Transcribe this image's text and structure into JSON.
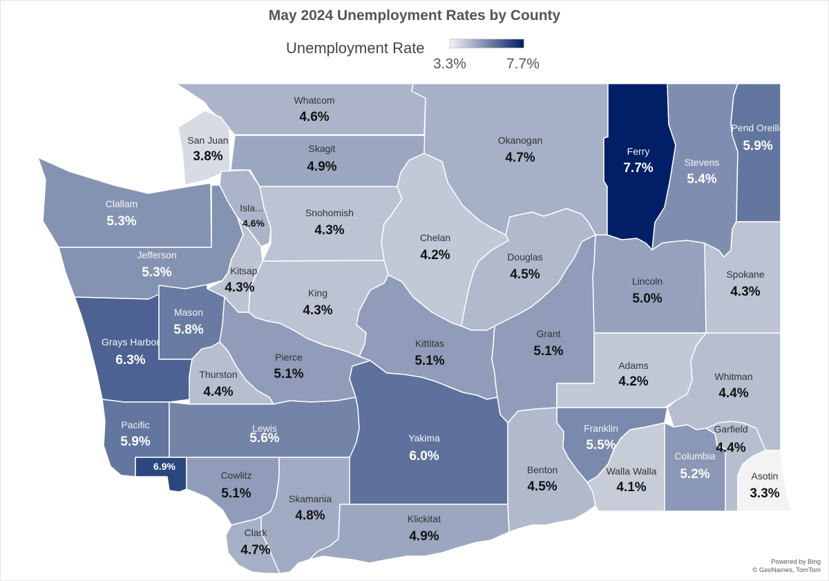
{
  "title": "May 2024 Unemployment Rates by County",
  "legend": {
    "label": "Unemployment Rate",
    "min_label": "3.3%",
    "max_label": "7.7%",
    "min_value": 3.3,
    "max_value": 7.7,
    "min_color": "#f3f3f3",
    "max_color": "#001f66"
  },
  "colors": {
    "light_text": "#ffffff",
    "dark_text": "#111111",
    "name_light": "#f4f4f4",
    "name_dark": "#333333"
  },
  "counties": [
    {
      "name": "Whatcom",
      "rate_label": "4.6%",
      "rate": 4.6
    },
    {
      "name": "San Juan",
      "rate_label": "3.8%",
      "rate": 3.8
    },
    {
      "name": "Skagit",
      "rate_label": "4.9%",
      "rate": 4.9
    },
    {
      "name": "Okanogan",
      "rate_label": "4.7%",
      "rate": 4.7
    },
    {
      "name": "Ferry",
      "rate_label": "7.7%",
      "rate": 7.7
    },
    {
      "name": "Stevens",
      "rate_label": "5.4%",
      "rate": 5.4
    },
    {
      "name": "Pend Oreille",
      "rate_label": "5.9%",
      "rate": 5.9
    },
    {
      "name": "Clallam",
      "rate_label": "5.3%",
      "rate": 5.3
    },
    {
      "name": "Isla...",
      "rate_label": "4.6%",
      "rate": 4.6
    },
    {
      "name": "Snohomish",
      "rate_label": "4.3%",
      "rate": 4.3
    },
    {
      "name": "Chelan",
      "rate_label": "4.2%",
      "rate": 4.2
    },
    {
      "name": "Douglas",
      "rate_label": "4.5%",
      "rate": 4.5
    },
    {
      "name": "Jefferson",
      "rate_label": "5.3%",
      "rate": 5.3
    },
    {
      "name": "Kitsap",
      "rate_label": "4.3%",
      "rate": 4.3
    },
    {
      "name": "King",
      "rate_label": "4.3%",
      "rate": 4.3
    },
    {
      "name": "Lincoln",
      "rate_label": "5.0%",
      "rate": 5.0
    },
    {
      "name": "Spokane",
      "rate_label": "4.3%",
      "rate": 4.3
    },
    {
      "name": "Mason",
      "rate_label": "5.8%",
      "rate": 5.8
    },
    {
      "name": "Grays Harbor",
      "rate_label": "6.3%",
      "rate": 6.3
    },
    {
      "name": "Kittitas",
      "rate_label": "5.1%",
      "rate": 5.1
    },
    {
      "name": "Grant",
      "rate_label": "5.1%",
      "rate": 5.1
    },
    {
      "name": "Thurston",
      "rate_label": "4.4%",
      "rate": 4.4
    },
    {
      "name": "Pierce",
      "rate_label": "5.1%",
      "rate": 5.1
    },
    {
      "name": "Adams",
      "rate_label": "4.2%",
      "rate": 4.2
    },
    {
      "name": "Whitman",
      "rate_label": "4.4%",
      "rate": 4.4
    },
    {
      "name": "Pacific",
      "rate_label": "5.9%",
      "rate": 5.9
    },
    {
      "name": "Lewis",
      "rate_label": "5.6%",
      "rate": 5.6
    },
    {
      "name": "Yakima",
      "rate_label": "6.0%",
      "rate": 6.0
    },
    {
      "name": "Franklin",
      "rate_label": "5.5%",
      "rate": 5.5
    },
    {
      "name": "Garfield",
      "rate_label": "4.4%",
      "rate": 4.4
    },
    {
      "name": "",
      "rate_label": "6.9%",
      "rate": 6.9
    },
    {
      "name": "Cowlitz",
      "rate_label": "5.1%",
      "rate": 5.1
    },
    {
      "name": "Benton",
      "rate_label": "4.5%",
      "rate": 4.5
    },
    {
      "name": "Walla Walla",
      "rate_label": "4.1%",
      "rate": 4.1
    },
    {
      "name": "Columbia",
      "rate_label": "5.2%",
      "rate": 5.2
    },
    {
      "name": "Asotin",
      "rate_label": "3.3%",
      "rate": 3.3
    },
    {
      "name": "Skamania",
      "rate_label": "4.8%",
      "rate": 4.8
    },
    {
      "name": "Klickitat",
      "rate_label": "4.9%",
      "rate": 4.9
    },
    {
      "name": "Clark",
      "rate_label": "4.7%",
      "rate": 4.7
    }
  ],
  "attribution": {
    "line1": "Powered by Bing",
    "line2": "© GeoNames, TomTom"
  }
}
